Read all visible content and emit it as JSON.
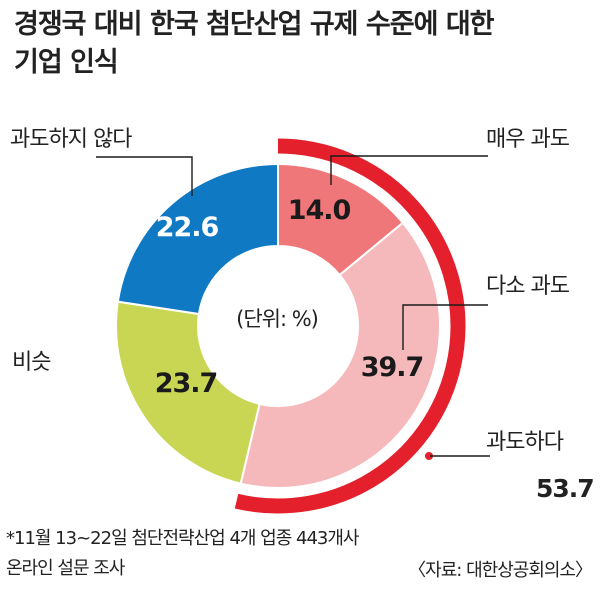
{
  "title_lines": [
    "경쟁국 대비 한국 첨단산업 규제 수준에 대한",
    "기업 인식"
  ],
  "chart_data": {
    "type": "pie",
    "title": "경쟁국 대비 한국 첨단산업 규제 수준에 대한 기업 인식",
    "unit_label": "(단위: %)",
    "slices": [
      {
        "label": "매우 과도",
        "value": 14.0,
        "display": "14.0",
        "color": "#ef7679"
      },
      {
        "label": "다소 과도",
        "value": 39.7,
        "display": "39.7",
        "color": "#f6b9bb"
      },
      {
        "label": "비슷",
        "value": 23.7,
        "display": "23.7",
        "color": "#c9d653"
      },
      {
        "label": "과도하지 않다",
        "value": 22.6,
        "display": "22.6",
        "color": "#1079c4"
      }
    ],
    "group": {
      "label": "과도하다",
      "value": 53.7,
      "display": "53.7",
      "color": "#e3202c"
    }
  },
  "footnote_lines": [
    "*11월 13~22일 첨단전략산업 4개 업종 443개사",
    "온라인 설문 조사"
  ],
  "source": "〈자료: 대한상공회의소〉"
}
